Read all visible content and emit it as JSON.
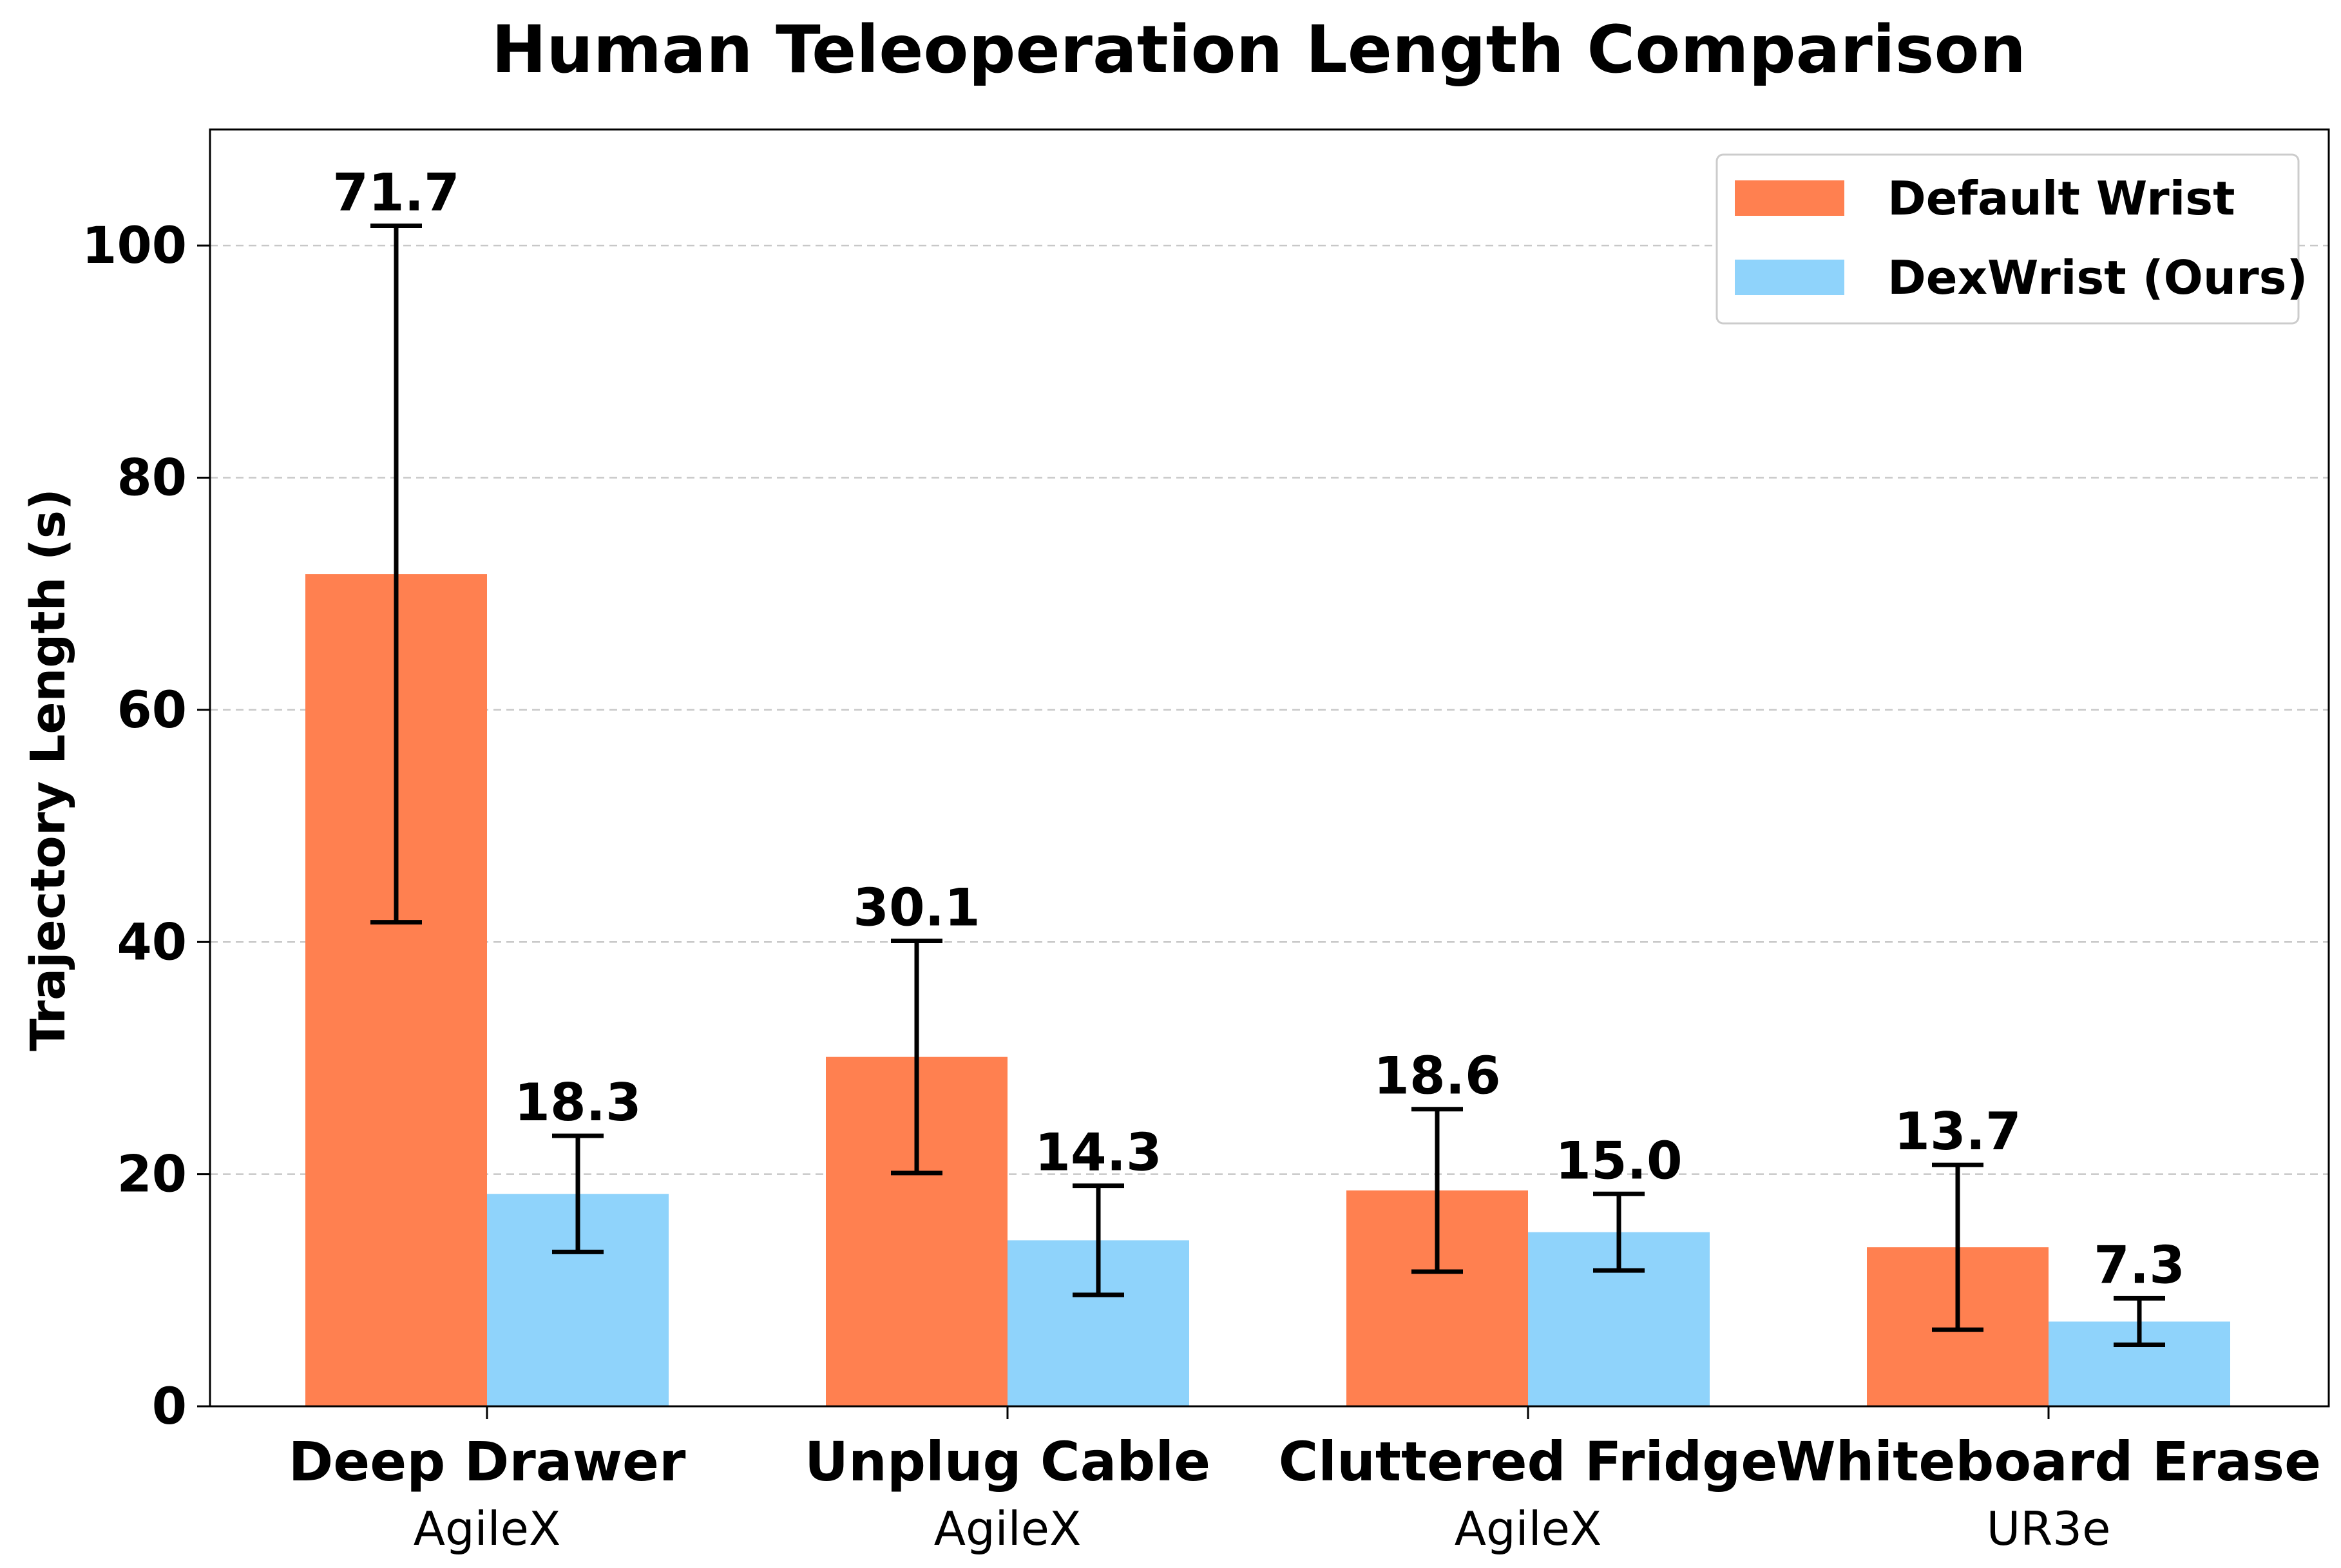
{
  "chart_data": {
    "type": "bar",
    "title": "Human Teleoperation Length Comparison",
    "xlabel": "",
    "ylabel": "Trajectory Length (s)",
    "ylim": [
      0,
      110
    ],
    "yticks": [
      0,
      20,
      40,
      60,
      80,
      100
    ],
    "grid": "horizontal dashed",
    "legend_position": "top-right",
    "categories": [
      "Deep Drawer",
      "Unplug Cable",
      "Cluttered Fridge",
      "Whiteboard Erase"
    ],
    "category_subtitles": [
      "AgileX",
      "AgileX",
      "AgileX",
      "UR3e"
    ],
    "series": [
      {
        "name": "Default Wrist",
        "color": "#ff8050",
        "values": [
          71.7,
          30.1,
          18.6,
          13.7
        ],
        "labels": [
          "71.7",
          "30.1",
          "18.6",
          "13.7"
        ],
        "error": [
          30.0,
          10.0,
          7.0,
          7.1
        ]
      },
      {
        "name": "DexWrist (Ours)",
        "color": "#8fd3fb",
        "values": [
          18.3,
          14.3,
          15.0,
          7.3
        ],
        "labels": [
          "18.3",
          "14.3",
          "15.0",
          "7.3"
        ],
        "error": [
          5.0,
          4.7,
          3.3,
          2.0
        ]
      }
    ]
  }
}
